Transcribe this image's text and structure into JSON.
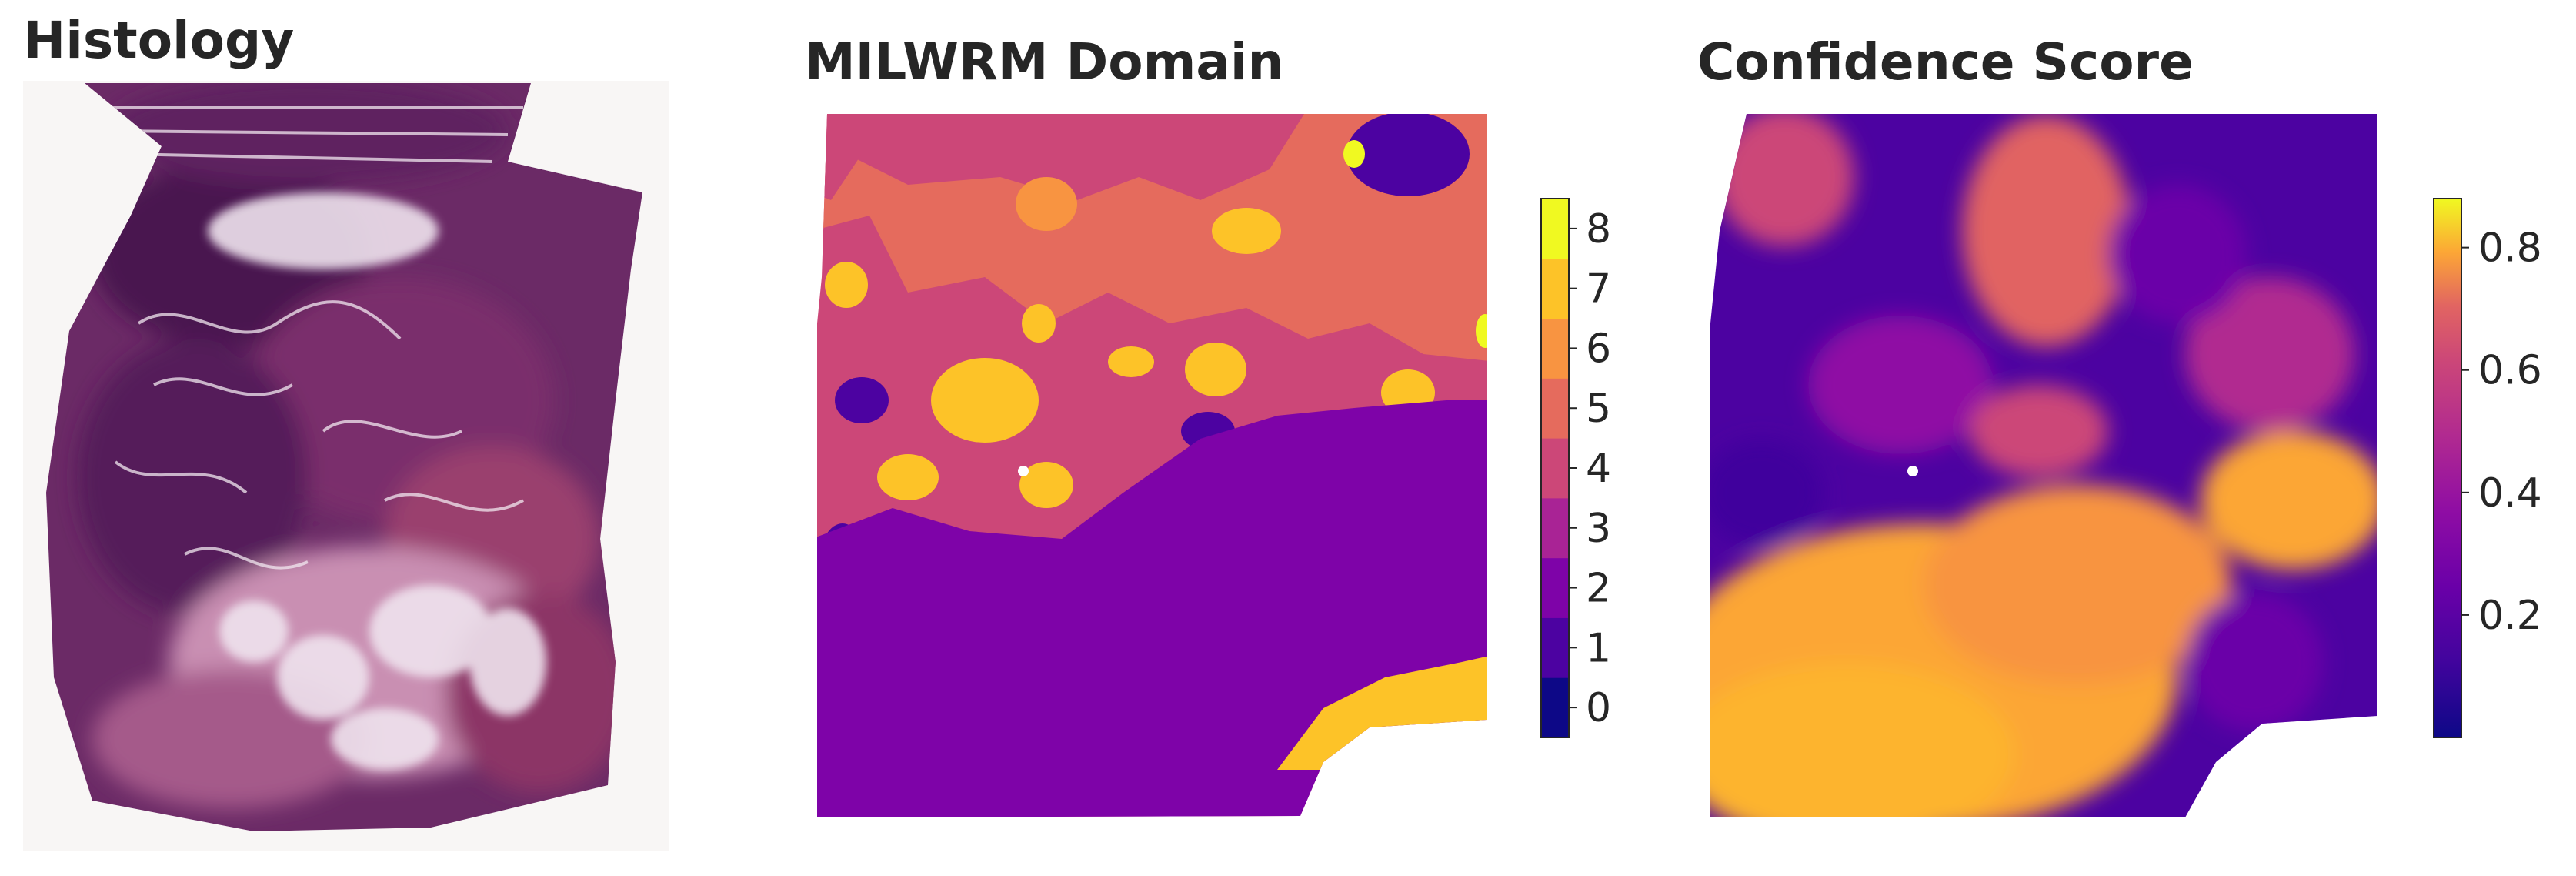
{
  "panels": [
    {
      "id": "histology",
      "title": "Histology",
      "content": "H&E tissue section"
    },
    {
      "id": "domain",
      "title": "MILWRM Domain",
      "content": "categorical spatial domain map"
    },
    {
      "id": "confidence",
      "title": "Confidence Score",
      "content": "continuous spatial score map"
    }
  ],
  "colorbars": {
    "domain": {
      "colormap": "plasma (discrete, 9 levels)",
      "ticks": [
        "0",
        "1",
        "2",
        "3",
        "4",
        "5",
        "6",
        "7",
        "8"
      ],
      "colors": [
        "#0d0887",
        "#4c02a1",
        "#7e03a8",
        "#a92395",
        "#cc4778",
        "#e56b5d",
        "#f89441",
        "#fdc328",
        "#f0f921"
      ]
    },
    "confidence": {
      "colormap": "plasma",
      "ticks": [
        "0.2",
        "0.4",
        "0.6",
        "0.8"
      ],
      "range": [
        0.0,
        0.88
      ]
    }
  },
  "palette": {
    "tissue_dark": "#5a1f5c",
    "tissue_mid": "#8a3a78",
    "tissue_light": "#e9d8e6",
    "background": "#ffffff"
  }
}
